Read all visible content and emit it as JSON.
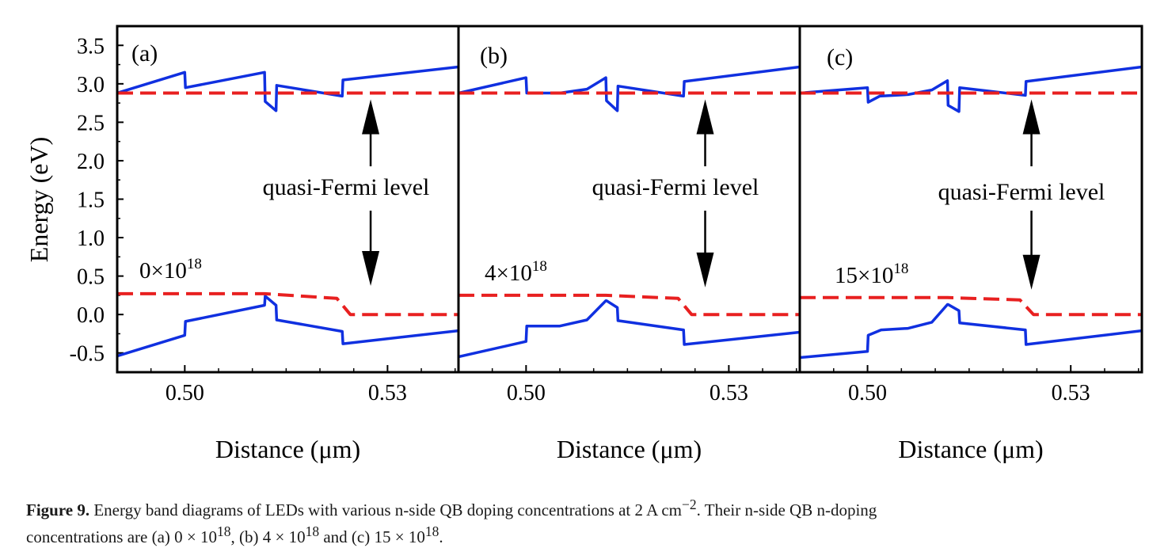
{
  "figure": {
    "ylabel": "Energy (eV)",
    "xlabel": "Distance (μm)",
    "annotation": "quasi-Fermi level",
    "yticks": [
      "3.5",
      "3.0",
      "2.5",
      "2.0",
      "1.5",
      "1.0",
      "0.5",
      "0.0",
      "-0.5"
    ],
    "xticks": [
      "0.50",
      "0.53"
    ],
    "colors": {
      "band": "#1030e0",
      "fermi": "#e82020",
      "axis": "#000000"
    },
    "caption": {
      "label": "Figure 9.",
      "line1_pre": " Energy band diagrams of LEDs with various n-side QB doping concentrations at 2 A cm",
      "line1_sup": "−2",
      "line1_post": ". Their n-side QB n-doping",
      "line2_a": "concentrations are (a) 0 × 10",
      "line2_a_sup": "18",
      "line2_b": ", (b) 4 × 10",
      "line2_b_sup": "18",
      "line2_c": " and (c) 15 × 10",
      "line2_c_sup": "18",
      "line2_end": "."
    }
  },
  "chart_data": [
    {
      "type": "line",
      "panel_label": "(a)",
      "doping_label": "0×10",
      "doping_sup": "18",
      "xlim": [
        0.49,
        0.5405
      ],
      "ylim": [
        -0.75,
        3.75
      ],
      "series": [
        {
          "role": "conduction-band",
          "points": [
            [
              0.49,
              2.88
            ],
            [
              0.5,
              3.15
            ],
            [
              0.5001,
              2.95
            ],
            [
              0.5118,
              3.15
            ],
            [
              0.5119,
              2.77
            ],
            [
              0.5135,
              2.65
            ],
            [
              0.5136,
              2.98
            ],
            [
              0.5233,
              2.84
            ],
            [
              0.5234,
              3.05
            ],
            [
              0.5405,
              3.22
            ]
          ]
        },
        {
          "role": "valence-band",
          "points": [
            [
              0.49,
              -0.54
            ],
            [
              0.5,
              -0.27
            ],
            [
              0.5001,
              -0.09
            ],
            [
              0.5118,
              0.12
            ],
            [
              0.5119,
              0.24
            ],
            [
              0.5135,
              0.12
            ],
            [
              0.5136,
              -0.07
            ],
            [
              0.5233,
              -0.22
            ],
            [
              0.5234,
              -0.38
            ],
            [
              0.5405,
              -0.21
            ]
          ]
        },
        {
          "role": "quasi-fermi-n",
          "points": [
            [
              0.49,
              2.88
            ],
            [
              0.5405,
              2.88
            ]
          ]
        },
        {
          "role": "quasi-fermi-p",
          "points": [
            [
              0.49,
              0.27
            ],
            [
              0.5118,
              0.27
            ],
            [
              0.5225,
              0.21
            ],
            [
              0.5245,
              0.0
            ],
            [
              0.5405,
              0.0
            ]
          ]
        }
      ]
    },
    {
      "type": "line",
      "panel_label": "(b)",
      "doping_label": "4×10",
      "doping_sup": "18",
      "xlim": [
        0.49,
        0.5405
      ],
      "ylim": [
        -0.75,
        3.75
      ],
      "series": [
        {
          "role": "conduction-band",
          "points": [
            [
              0.49,
              2.88
            ],
            [
              0.5,
              3.08
            ],
            [
              0.5001,
              2.88
            ],
            [
              0.505,
              2.88
            ],
            [
              0.509,
              2.93
            ],
            [
              0.5118,
              3.08
            ],
            [
              0.5119,
              2.78
            ],
            [
              0.5135,
              2.65
            ],
            [
              0.5136,
              2.97
            ],
            [
              0.5233,
              2.84
            ],
            [
              0.5234,
              3.03
            ],
            [
              0.5405,
              3.22
            ]
          ]
        },
        {
          "role": "valence-band",
          "points": [
            [
              0.49,
              -0.55
            ],
            [
              0.5,
              -0.35
            ],
            [
              0.5001,
              -0.15
            ],
            [
              0.505,
              -0.15
            ],
            [
              0.509,
              -0.07
            ],
            [
              0.5118,
              0.18
            ],
            [
              0.5119,
              0.18
            ],
            [
              0.5135,
              0.09
            ],
            [
              0.5136,
              -0.08
            ],
            [
              0.5233,
              -0.2
            ],
            [
              0.5234,
              -0.39
            ],
            [
              0.5405,
              -0.23
            ]
          ]
        },
        {
          "role": "quasi-fermi-n",
          "points": [
            [
              0.49,
              2.88
            ],
            [
              0.5405,
              2.88
            ]
          ]
        },
        {
          "role": "quasi-fermi-p",
          "points": [
            [
              0.49,
              0.25
            ],
            [
              0.5118,
              0.25
            ],
            [
              0.5225,
              0.21
            ],
            [
              0.5245,
              0.0
            ],
            [
              0.5405,
              0.0
            ]
          ]
        }
      ]
    },
    {
      "type": "line",
      "panel_label": "(c)",
      "doping_label": "15×10",
      "doping_sup": "18",
      "xlim": [
        0.49,
        0.5405
      ],
      "ylim": [
        -0.75,
        3.75
      ],
      "series": [
        {
          "role": "conduction-band",
          "points": [
            [
              0.49,
              2.88
            ],
            [
              0.5,
              2.95
            ],
            [
              0.5001,
              2.76
            ],
            [
              0.5018,
              2.84
            ],
            [
              0.506,
              2.86
            ],
            [
              0.5095,
              2.92
            ],
            [
              0.5118,
              3.04
            ],
            [
              0.5119,
              2.72
            ],
            [
              0.5135,
              2.64
            ],
            [
              0.5136,
              2.95
            ],
            [
              0.5233,
              2.85
            ],
            [
              0.5234,
              3.03
            ],
            [
              0.5405,
              3.22
            ]
          ]
        },
        {
          "role": "valence-band",
          "points": [
            [
              0.49,
              -0.56
            ],
            [
              0.5,
              -0.48
            ],
            [
              0.5001,
              -0.27
            ],
            [
              0.502,
              -0.2
            ],
            [
              0.506,
              -0.18
            ],
            [
              0.5095,
              -0.1
            ],
            [
              0.5118,
              0.13
            ],
            [
              0.5119,
              0.13
            ],
            [
              0.5135,
              0.05
            ],
            [
              0.5136,
              -0.11
            ],
            [
              0.5233,
              -0.2
            ],
            [
              0.5234,
              -0.39
            ],
            [
              0.5405,
              -0.21
            ]
          ]
        },
        {
          "role": "quasi-fermi-n",
          "points": [
            [
              0.49,
              2.88
            ],
            [
              0.5405,
              2.88
            ]
          ]
        },
        {
          "role": "quasi-fermi-p",
          "points": [
            [
              0.49,
              0.22
            ],
            [
              0.5118,
              0.22
            ],
            [
              0.5225,
              0.19
            ],
            [
              0.5245,
              0.0
            ],
            [
              0.5405,
              0.0
            ]
          ]
        }
      ]
    }
  ]
}
